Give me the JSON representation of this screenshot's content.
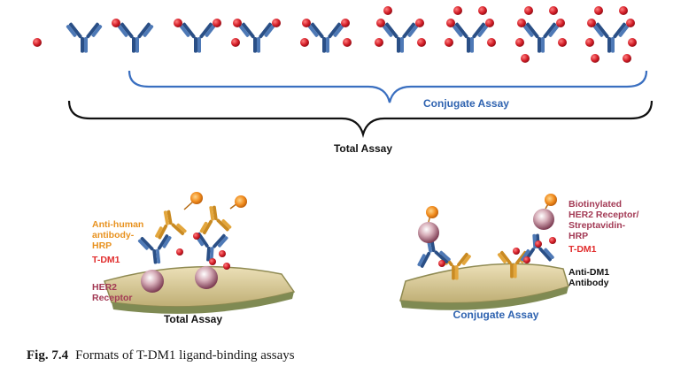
{
  "top_panel": {
    "bracket_inner_label": "Conjugate Assay",
    "bracket_outer_label": "Total Assay",
    "antibody_payload_counts": [
      0,
      1,
      2,
      3,
      4,
      5,
      6,
      7,
      8
    ]
  },
  "left_panel": {
    "label_secondary": [
      "Anti-human",
      "antibody-",
      "HRP"
    ],
    "label_drug": "T-DM1",
    "label_receptor": [
      "HER2",
      "Receptor"
    ],
    "title": "Total Assay"
  },
  "right_panel": {
    "label_capture": [
      "Biotinylated",
      "HER2 Receptor/",
      "Streptavidin-",
      "HRP"
    ],
    "label_drug": "T-DM1",
    "label_detect": [
      "Anti-DM1",
      "Antibody"
    ],
    "title": "Conjugate Assay"
  },
  "caption": {
    "figure_number": "Fig. 7.4",
    "text": "Formats of T-DM1 ligand-binding assays"
  },
  "colors": {
    "antibody": "#2a4f86",
    "antibody_light": "#4e79b6",
    "drug": "#d0202b",
    "secondary_antibody": "#e39a2a",
    "hrp": "#f08a1c",
    "receptor": "#c89aa8",
    "plate": "#d9c896",
    "blue_label": "#2f63b0",
    "orange_label": "#e8921f",
    "red_label": "#e12d2d",
    "maroon_label": "#a33a55"
  }
}
